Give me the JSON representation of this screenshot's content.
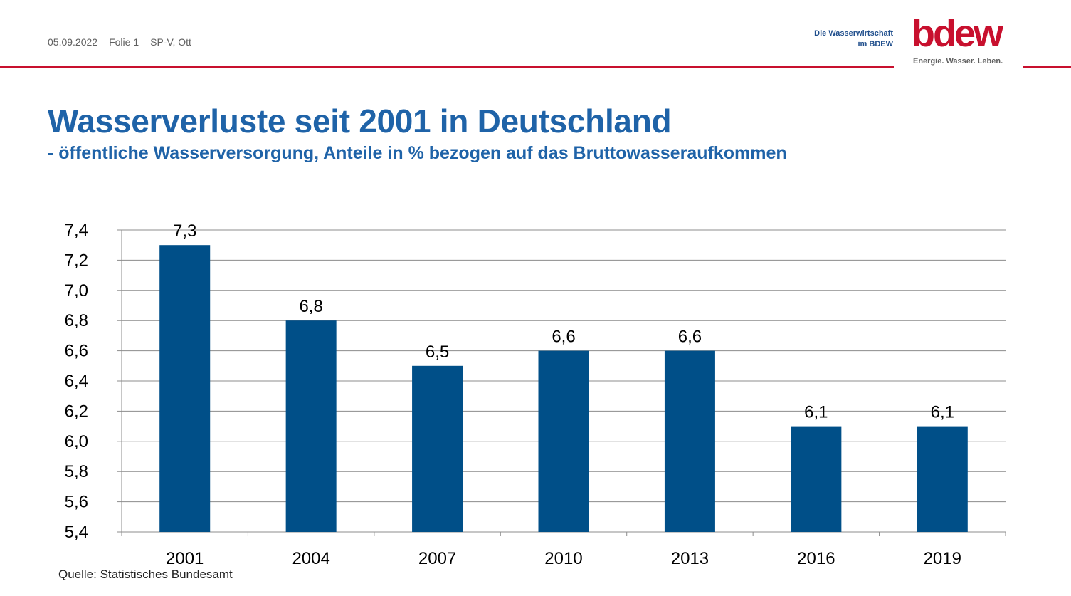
{
  "header": {
    "date": "05.09.2022",
    "slide": "Folie 1",
    "author": "SP-V, Ott"
  },
  "brand": {
    "tagline_line1": "Die Wasserwirtschaft",
    "tagline_line2": "im BDEW",
    "logo": "bdew",
    "slogan": "Energie. Wasser. Leben.",
    "accent_color": "#c8102e",
    "title_color": "#1f63a8",
    "bar_color": "#004f88"
  },
  "title": "Wasserverluste seit 2001 in Deutschland",
  "subtitle": "- öffentliche Wasserversorgung, Anteile in % bezogen auf das Bruttowasseraufkommen",
  "source": "Quelle: Statistisches Bundesamt",
  "chart_data": {
    "type": "bar",
    "categories": [
      "2001",
      "2004",
      "2007",
      "2010",
      "2013",
      "2016",
      "2019"
    ],
    "values": [
      7.3,
      6.8,
      6.5,
      6.6,
      6.6,
      6.1,
      6.1
    ],
    "value_labels": [
      "7,3",
      "6,8",
      "6,5",
      "6,6",
      "6,6",
      "6,1",
      "6,1"
    ],
    "ylim": [
      5.4,
      7.4
    ],
    "yticks": [
      "5,4",
      "5,6",
      "5,8",
      "6,0",
      "6,2",
      "6,4",
      "6,6",
      "6,8",
      "7,0",
      "7,2",
      "7,4"
    ],
    "grid": true,
    "legend": "none",
    "xlabel": "",
    "ylabel": ""
  }
}
